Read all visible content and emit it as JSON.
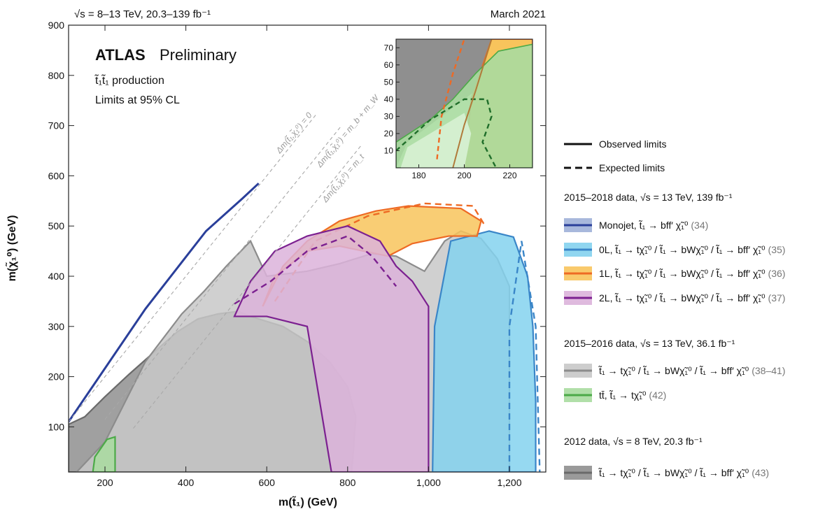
{
  "header": {
    "energy": "√s = 8–13 TeV, 20.3–139 fb⁻¹",
    "date": "March 2021"
  },
  "badge": {
    "atlas": "ATLAS",
    "status": "Preliminary",
    "process": "t̃₁t̃₁ production",
    "cl": "Limits at 95% CL"
  },
  "line_labels": {
    "dm0": "Δm(t̃₁,χ̃₁⁰) = 0",
    "dmbw": "Δm(t̃₁,χ̃₁⁰) = m_b + m_W",
    "dmt": "Δm(t̃₁,χ̃₁⁰) = m_t"
  },
  "legend": {
    "observed": "Observed limits",
    "expected": "Expected limits",
    "group_2015_2018": "2015–2018 data, √s = 13 TeV, 139 fb⁻¹",
    "group_2015_2016": "2015–2016 data, √s = 13 TeV, 36.1 fb⁻¹",
    "group_2012": "2012 data, √s = 8 TeV, 20.3 fb⁻¹",
    "items": [
      {
        "label": "Monojet, t̃₁ → bff′ χ̃₁⁰",
        "ref": "(34)",
        "fill": "#9fb0d8",
        "line": "#2a3f9a"
      },
      {
        "label": "0L, t̃₁ → tχ̃₁⁰ / t̃₁ → bWχ̃₁⁰ / t̃₁ → bff′ χ̃₁⁰",
        "ref": "(35)",
        "fill": "#84d2ee",
        "line": "#3a86c8"
      },
      {
        "label": "1L, t̃₁ → tχ̃₁⁰ / t̃₁ → bWχ̃₁⁰ / t̃₁ → bff′ χ̃₁⁰",
        "ref": "(36)",
        "fill": "#f8c45c",
        "line": "#ee6a24"
      },
      {
        "label": "2L, t̃₁ → tχ̃₁⁰ / t̃₁ → bWχ̃₁⁰ / t̃₁ → bff′ χ̃₁⁰",
        "ref": "(37)",
        "fill": "#dcb3da",
        "line": "#7c2090"
      },
      {
        "label": "t̃₁ → tχ̃₁⁰ / t̃₁ → bWχ̃₁⁰ / t̃₁ → bff′ χ̃₁⁰",
        "ref": "(38–41)",
        "fill": "#c8c8c8",
        "line": "#8c8c8c"
      },
      {
        "label": "tt̄, t̃₁ → tχ̃₁⁰",
        "ref": "(42)",
        "fill": "#a9dca0",
        "line": "#4caa48"
      },
      {
        "label": "t̃₁ → tχ̃₁⁰ / t̃₁ → bWχ̃₁⁰ / t̃₁ → bff′ χ̃₁⁰",
        "ref": "(43)",
        "fill": "#8f8f8f",
        "line": "#6a6a6a"
      }
    ]
  },
  "chart_data": {
    "type": "area",
    "xlabel": "m(t̃₁) (GeV)",
    "ylabel": "m(χ̃₁⁰) (GeV)",
    "xlim": [
      110,
      1290
    ],
    "ylim": [
      10,
      900
    ],
    "xticks": [
      200,
      400,
      600,
      800,
      1000,
      1200
    ],
    "xtick_labels": [
      "200",
      "400",
      "600",
      "800",
      "1,000",
      "1,200"
    ],
    "yticks": [
      100,
      200,
      300,
      400,
      500,
      600,
      700,
      800,
      900
    ],
    "diagonals": [
      {
        "name": "dm0",
        "offset": 0,
        "x": [
          110,
          725
        ]
      },
      {
        "name": "dmbw",
        "offset": 85,
        "x": [
          200,
          785
        ]
      },
      {
        "name": "dmt",
        "offset": 173,
        "x": [
          270,
          835
        ]
      }
    ],
    "series": [
      {
        "name": "2012",
        "fill": "#8f8f8f",
        "line": "#6a6a6a",
        "observed": [
          [
            110,
            10
          ],
          [
            110,
            105
          ],
          [
            150,
            120
          ],
          [
            200,
            160
          ],
          [
            260,
            205
          ],
          [
            330,
            255
          ],
          [
            380,
            290
          ],
          [
            430,
            315
          ],
          [
            480,
            325
          ],
          [
            530,
            330
          ],
          [
            560,
            320
          ],
          [
            640,
            300
          ],
          [
            700,
            270
          ],
          [
            755,
            230
          ],
          [
            800,
            180
          ],
          [
            820,
            120
          ],
          [
            815,
            60
          ],
          [
            810,
            10
          ]
        ]
      },
      {
        "name": "2015-2016",
        "fill": "#c8c8c8",
        "line": "#8c8c8c",
        "observed": [
          [
            130,
            10
          ],
          [
            200,
            70
          ],
          [
            300,
            230
          ],
          [
            390,
            325
          ],
          [
            445,
            370
          ],
          [
            500,
            420
          ],
          [
            560,
            470
          ],
          [
            600,
            400
          ],
          [
            700,
            410
          ],
          [
            780,
            425
          ],
          [
            860,
            445
          ],
          [
            920,
            440
          ],
          [
            990,
            410
          ],
          [
            1040,
            470
          ],
          [
            1080,
            490
          ],
          [
            1130,
            475
          ],
          [
            1170,
            435
          ],
          [
            1200,
            380
          ],
          [
            1200,
            10
          ]
        ]
      },
      {
        "name": "0L",
        "fill": "#84d2ee",
        "line": "#3a86c8",
        "observed": [
          [
            1010,
            10
          ],
          [
            1015,
            300
          ],
          [
            1055,
            470
          ],
          [
            1150,
            490
          ],
          [
            1210,
            478
          ],
          [
            1245,
            400
          ],
          [
            1258,
            300
          ],
          [
            1265,
            150
          ],
          [
            1265,
            10
          ]
        ],
        "expected": [
          [
            1200,
            10
          ],
          [
            1200,
            300
          ],
          [
            1230,
            470
          ],
          [
            1265,
            300
          ],
          [
            1275,
            10
          ]
        ]
      },
      {
        "name": "1L",
        "fill": "#f8c45c",
        "line": "#ee6a24",
        "observed": [
          [
            590,
            340
          ],
          [
            640,
            420
          ],
          [
            700,
            470
          ],
          [
            780,
            510
          ],
          [
            870,
            530
          ],
          [
            950,
            540
          ],
          [
            1080,
            535
          ],
          [
            1130,
            510
          ],
          [
            1120,
            480
          ],
          [
            1050,
            480
          ],
          [
            960,
            465
          ],
          [
            900,
            440
          ],
          [
            780,
            460
          ],
          [
            700,
            450
          ],
          [
            620,
            400
          ]
        ],
        "expected": [
          [
            620,
            350
          ],
          [
            720,
            470
          ],
          [
            850,
            520
          ],
          [
            990,
            545
          ],
          [
            1110,
            540
          ],
          [
            1140,
            500
          ]
        ]
      },
      {
        "name": "2L",
        "fill": "#dcb3da",
        "line": "#7c2090",
        "observed": [
          [
            520,
            320
          ],
          [
            560,
            390
          ],
          [
            620,
            450
          ],
          [
            700,
            480
          ],
          [
            800,
            500
          ],
          [
            880,
            470
          ],
          [
            920,
            420
          ],
          [
            960,
            390
          ],
          [
            1000,
            340
          ],
          [
            1000,
            10
          ],
          [
            760,
            10
          ],
          [
            700,
            300
          ],
          [
            600,
            320
          ]
        ],
        "expected": [
          [
            520,
            345
          ],
          [
            610,
            390
          ],
          [
            700,
            450
          ],
          [
            800,
            480
          ],
          [
            860,
            440
          ],
          [
            920,
            380
          ]
        ]
      },
      {
        "name": "Monojet",
        "fill": "#9fb0d8",
        "line": "#2a3f9a",
        "observed": [
          [
            110,
            110
          ],
          [
            300,
            335
          ],
          [
            450,
            490
          ],
          [
            540,
            555
          ],
          [
            580,
            585
          ]
        ]
      },
      {
        "name": "tt",
        "fill": "#a9dca0",
        "line": "#4caa48",
        "observed": [
          [
            170,
            10
          ],
          [
            175,
            40
          ],
          [
            205,
            75
          ],
          [
            225,
            80
          ],
          [
            225,
            10
          ]
        ]
      }
    ],
    "inset": {
      "xlim": [
        170,
        230
      ],
      "ylim": [
        0,
        75
      ],
      "xticks": [
        180,
        200,
        220
      ],
      "yticks": [
        10,
        20,
        30,
        40,
        50,
        60,
        70
      ]
    }
  }
}
